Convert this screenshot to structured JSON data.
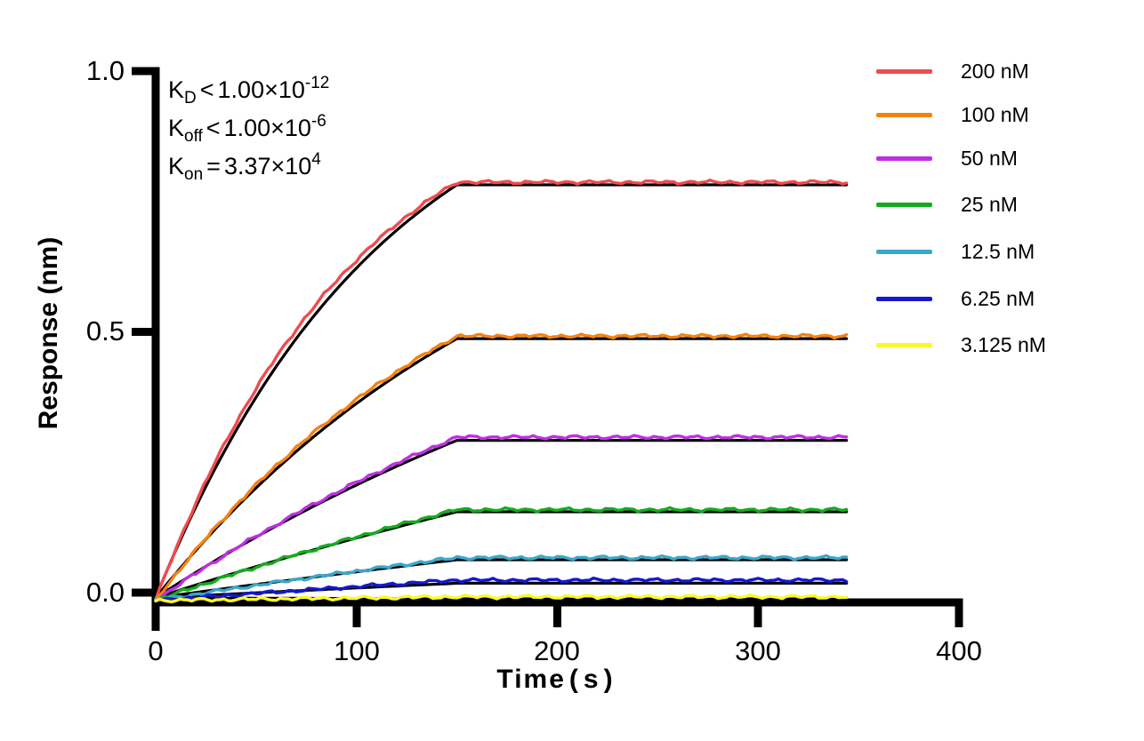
{
  "chart_data": {
    "type": "line",
    "title": "",
    "xlabel": "Time(s)",
    "xlabel_parts": {
      "word": "Time",
      "open": "(",
      "letter": "s",
      "close": ")"
    },
    "ylabel": "Response (nm)",
    "x_unit": "s",
    "y_unit": "nm",
    "xlim": [
      0,
      400
    ],
    "ylim": [
      -0.05,
      1.0
    ],
    "x_tick_labels": [
      "0",
      "100",
      "200",
      "300",
      "400"
    ],
    "y_tick_labels": [
      "1.0",
      "0.5",
      "0.0"
    ],
    "grid": false,
    "legend_position": "right-outside",
    "assoc_end_s": 150,
    "end_s": 344,
    "start_nm": -0.015,
    "fit_start_nm": -0.01,
    "fit_k_scale": 0.88,
    "noise_amp_nm": 0.0035,
    "fit_color": "#000000",
    "series": [
      {
        "label": "200 nM",
        "conc_nM": 200,
        "color": "#F04B4E",
        "plateau_nm": 0.782,
        "data_offset_nm": 0.005,
        "k_obs_per_s": 0.01
      },
      {
        "label": "100 nM",
        "conc_nM": 100,
        "color": "#F28311",
        "plateau_nm": 0.487,
        "data_offset_nm": 0.005,
        "k_obs_per_s": 0.006
      },
      {
        "label": "50 nM",
        "conc_nM": 50,
        "color": "#BE2FE3",
        "plateau_nm": 0.292,
        "data_offset_nm": 0.006,
        "k_obs_per_s": 0.0035
      },
      {
        "label": "25 nM",
        "conc_nM": 25,
        "color": "#14AC1E",
        "plateau_nm": 0.155,
        "data_offset_nm": 0.004,
        "k_obs_per_s": 0.002
      },
      {
        "label": "12.5 nM",
        "conc_nM": 12.5,
        "color": "#3BA7CB",
        "plateau_nm": 0.063,
        "data_offset_nm": 0.004,
        "k_obs_per_s": 0.0012
      },
      {
        "label": "6.25 nM",
        "conc_nM": 6.25,
        "color": "#1618CF",
        "plateau_nm": 0.018,
        "data_offset_nm": 0.006,
        "k_obs_per_s": 0.0008
      },
      {
        "label": "3.125 nM",
        "conc_nM": 3.125,
        "color": "#F9F929",
        "plateau_nm": -0.012,
        "data_offset_nm": 0.004,
        "k_obs_per_s": 0.0005
      }
    ]
  },
  "annotation": {
    "lines": [
      {
        "base": "K",
        "sub": "D",
        "cmp": "<",
        "value": "1.00×10",
        "sup": "-12"
      },
      {
        "base": "K",
        "sub": "off",
        "cmp": "<",
        "value": "1.00×10",
        "sup": "-6"
      },
      {
        "base": "K",
        "sub": "on",
        "cmp": "=",
        "value": "3.37×10",
        "sup": "4"
      }
    ]
  }
}
